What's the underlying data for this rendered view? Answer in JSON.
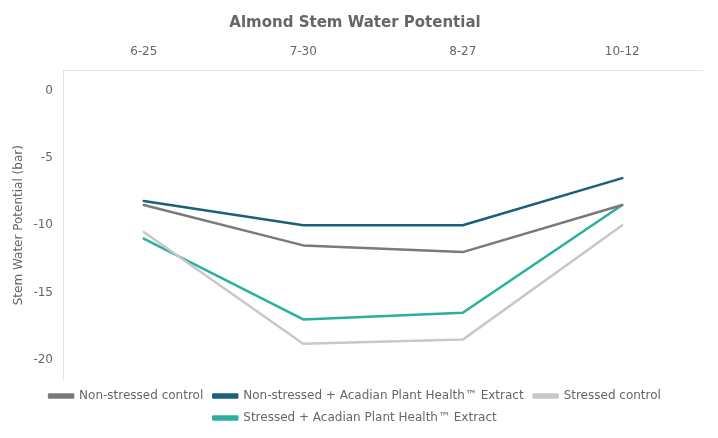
{
  "chart_data": {
    "type": "line",
    "title": "Almond Stem Water Potential",
    "ylabel": "Stem Water Potential (bar)",
    "categories": [
      "6-25",
      "7-30",
      "8-27",
      "10-12"
    ],
    "series": [
      {
        "name": "Non-stressed control",
        "color": "#7a7a7a",
        "values": [
          -8.5,
          -11.5,
          -12.0,
          -8.5
        ]
      },
      {
        "name": "Non-stressed + Acadian Plant Health™ Extract",
        "color": "#1a6078",
        "values": [
          -8.2,
          -10.0,
          -10.0,
          -6.5
        ]
      },
      {
        "name": "Stressed control",
        "color": "#c8c8c8",
        "values": [
          -10.5,
          -18.8,
          -18.5,
          -10.0
        ]
      },
      {
        "name": "Stressed + Acadian Plant Health™ Extract",
        "color": "#2aafa0",
        "values": [
          -11.0,
          -17.0,
          -16.5,
          -8.5
        ]
      }
    ],
    "ylim": [
      -21.5,
      1.5
    ],
    "yticks": [
      0,
      -5,
      -10,
      -15,
      -20
    ],
    "grid": false,
    "legend": "bottom"
  }
}
